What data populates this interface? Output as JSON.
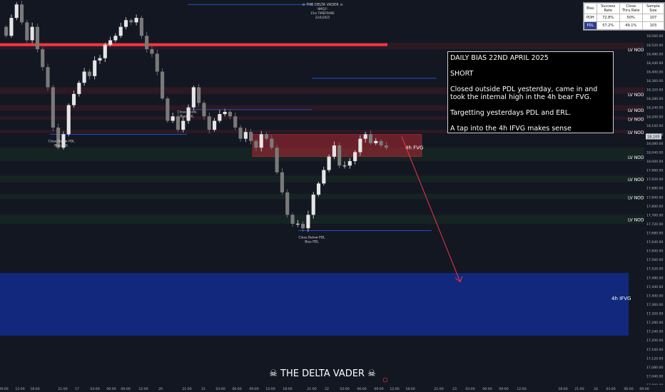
{
  "chart_data": {
    "type": "candlestick",
    "y_axis": {
      "min": 17000,
      "max": 18720,
      "step": 40,
      "current_price_label": "18,100"
    },
    "x_ticks": [
      "09:00",
      "12:00",
      "18:00",
      "21:00",
      "17",
      "03:00",
      "06:00",
      "09:00",
      "12:00",
      "20",
      "21:00",
      "21",
      "03:00",
      "06:00",
      "09:00",
      "12:00",
      "18:00",
      "21:00",
      "22",
      "03:00",
      "06:00",
      "09:00",
      "12:00",
      "18:00",
      "21:00",
      "23",
      "03:00",
      "06:00",
      "09:00",
      "12:00",
      "18:00",
      "21:00",
      "24",
      "03:00",
      "06:00",
      "09:00"
    ],
    "candles_close": [
      18560,
      18640,
      18700,
      18620,
      18540,
      18600,
      18500,
      18420,
      18330,
      18150,
      18060,
      18120,
      18250,
      18300,
      18350,
      18400,
      18380,
      18450,
      18460,
      18520,
      18540,
      18560,
      18600,
      18630,
      18620,
      18640,
      18560,
      18500,
      18480,
      18400,
      18280,
      18180,
      18200,
      18140,
      18180,
      18240,
      18330,
      18260,
      18200,
      18140,
      18180,
      18210,
      18220,
      18200,
      18150,
      18100,
      18130,
      18090,
      18060,
      18120,
      18100,
      18060,
      17950,
      17860,
      17760,
      17720,
      17720,
      17700,
      17760,
      17850,
      17900,
      17960,
      18020,
      18070,
      17980,
      17980,
      18000,
      18040,
      18100,
      18120,
      18080,
      18090,
      18070,
      18060
    ],
    "horizontal_lines": [
      {
        "price": 18520,
        "color": "#f23645",
        "label": ""
      },
      {
        "price": 18700,
        "color": "#2962ff",
        "label": ""
      },
      {
        "price": 18370,
        "color": "#2962ff",
        "label": ""
      },
      {
        "price": 18230,
        "color": "#2962ff",
        "label": ""
      },
      {
        "price": 18120,
        "color": "#2962ff",
        "label": ""
      },
      {
        "price": 17690,
        "color": "#2962ff",
        "label": ""
      }
    ],
    "zones": [
      {
        "label": "4h FVG",
        "top": 18120,
        "bottom": 18020,
        "color": "rgba(178,40,51,0.55)"
      },
      {
        "label": "4h IFVG",
        "top": 17500,
        "bottom": 17220,
        "color": "rgba(18,44,140,0.85)"
      }
    ],
    "lv_nodes": [
      {
        "label": "LV NODE",
        "price": 18500
      },
      {
        "label": "LV NODE",
        "price": 18300
      },
      {
        "label": "LV NODE",
        "price": 18230
      },
      {
        "label": "LV NODE",
        "price": 18190
      },
      {
        "label": "LV NODE",
        "price": 18130
      },
      {
        "label": "LV NODE",
        "price": 18020
      },
      {
        "label": "LV NODE",
        "price": 17920
      },
      {
        "label": "LV NODE",
        "price": 17840
      },
      {
        "label": "LV NODE",
        "price": 17740
      }
    ],
    "annotations": [
      {
        "text": "Close Below PDL\nBias PDL",
        "price": 18110
      },
      {
        "text": "Close Inside\nBias PDL",
        "price": 18240
      },
      {
        "text": "Close Below PDL\nBias PDL",
        "price": 17680
      }
    ],
    "projection_arrow": {
      "color": "#f23645"
    }
  },
  "header_watermark": {
    "line1": "☠ THE DELTA VADER ☠",
    "line2": "NMQ1!",
    "line3": "15m TIMEFRAME",
    "line4": "22/4/2025"
  },
  "footer_watermark": "☠ THE DELTA VADER ☠",
  "note": {
    "title": "DAILY BIAS 22ND APRIL 2025",
    "bias": "SHORT",
    "p1": "Closed outside PDL yesterday, came in and took the internal high in the 4h bear FVG.",
    "p2": "Targetting yesterdays PDL and ERL.",
    "p3": "A tap into the 4h IFVG makes sense"
  },
  "stats": {
    "headers": [
      "Bias",
      "Success Rate",
      "Close Thru Rate",
      "Sample Size"
    ],
    "rows": [
      [
        "PDH",
        "72.8%",
        "50%",
        "107"
      ],
      [
        "PDL",
        "57.2%",
        "49.1%",
        "103"
      ]
    ]
  },
  "colors": {
    "bg": "#131722",
    "up": "#e6e6e6",
    "down": "#7a7a7a",
    "axis_text": "#b2b5be",
    "grid": "#1e222d"
  }
}
